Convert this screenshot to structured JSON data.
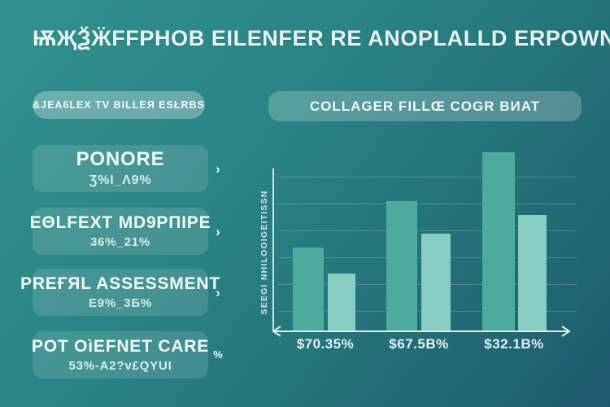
{
  "title": "ѬҖѮӜFFPHOB EILENFER RE ANOPLALLD ERPOWN!",
  "sidebar": {
    "top_button": "&JEA6LEX TV BILLEЯ ESŁRBS",
    "items": [
      {
        "title": "PONORE",
        "subtitle": "Ʒ%I_Ʌ9%",
        "chevron": "›"
      },
      {
        "title": "EΘLFEXT MD9PПIPE",
        "subtitle": "36%_21%",
        "chevron": "›"
      },
      {
        "title": "PREҒЯL ASSESSMENT",
        "subtitle": "E9%_3Б%",
        "chevron": "›"
      },
      {
        "title": "POT OìEFNET CARE",
        "subtitle": "53%-A2?v£QYUI",
        "chevron": "%"
      }
    ]
  },
  "chart_header": "COLLAGER FILLŒ COGR BИAT",
  "chart_data": {
    "type": "bar",
    "grouped": true,
    "categories": [
      "$70.35%",
      "$67.5B%",
      "$32.1B%"
    ],
    "series": [
      {
        "name": "primary",
        "color": "#4dab9e",
        "values": [
          51.5,
          80,
          110
        ]
      },
      {
        "name": "secondary",
        "color": "#87cdc2",
        "values": [
          35.5,
          60,
          71.5
        ]
      }
    ],
    "title": "",
    "xlabel": "",
    "ylabel": "SEEGI NHILOOIGEITISSN",
    "ylim": [
      0,
      120
    ],
    "gridlines": 6,
    "grid": "horizontal",
    "legend": "none",
    "axis_style": "white double-headed x arrow, white y line, no tick values"
  },
  "colors": {
    "bg_top": "#31918e",
    "bg_bottom": "#1d5b6c",
    "bar_primary": "#4dab9e",
    "bar_secondary": "#87cdc2",
    "text": "#e9f4f2"
  }
}
